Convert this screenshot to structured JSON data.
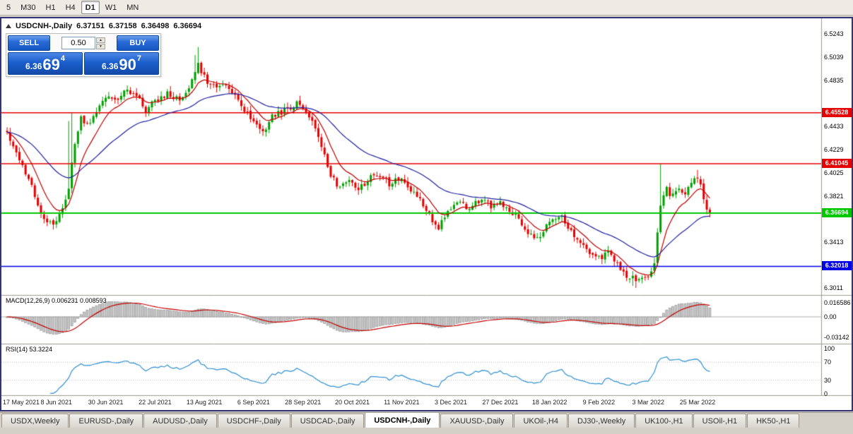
{
  "toolbar": {
    "periods": [
      {
        "label": "5",
        "active": false
      },
      {
        "label": "M30",
        "active": false
      },
      {
        "label": "H1",
        "active": false
      },
      {
        "label": "H4",
        "active": false
      },
      {
        "label": "D1",
        "active": true
      },
      {
        "label": "W1",
        "active": false
      },
      {
        "label": "MN",
        "active": false
      }
    ]
  },
  "quote_bar": {
    "symbol": "USDCNH-,Daily",
    "open": "6.37151",
    "high": "6.37158",
    "low": "6.36498",
    "close": "6.36694"
  },
  "trade_panel": {
    "sell_label": "SELL",
    "buy_label": "BUY",
    "volume": "0.50",
    "sell_price": {
      "base": "6.36",
      "big": "69",
      "sup": "4"
    },
    "buy_price": {
      "base": "6.36",
      "big": "90",
      "sup": "7"
    }
  },
  "indicators": {
    "macd_label": "MACD(12,26,9) 0.006231 0.008593",
    "rsi_label": "RSI(14) 53.3224"
  },
  "icons": {
    "up_arrow": "▲",
    "down_arrow": "▼"
  },
  "chart_data": {
    "type": "candlestick",
    "symbol": "USDCNH-",
    "timeframe": "Daily",
    "bars_total": 229,
    "price_range": {
      "top": 6.537,
      "bottom": 6.295
    },
    "y_ticks": [
      "6.5243",
      "6.5039",
      "6.4835",
      "6.4433",
      "6.4229",
      "6.4025",
      "6.3821",
      "6.3413",
      "6.3011"
    ],
    "hlines": [
      {
        "value": 6.45528,
        "label": "6.45528",
        "color": "#e60000",
        "kind": "resistance"
      },
      {
        "value": 6.41045,
        "label": "6.41045",
        "color": "#e60000",
        "kind": "resistance"
      },
      {
        "value": 6.36694,
        "label": "6.36694",
        "color": "#00c800",
        "kind": "bid"
      },
      {
        "value": 6.32018,
        "label": "6.32018",
        "color": "#0000e6",
        "kind": "support"
      }
    ],
    "x_labels": [
      {
        "bar": 0,
        "label": "17 May 2021"
      },
      {
        "bar": 16,
        "label": "8 Jun 2021"
      },
      {
        "bar": 32,
        "label": "30 Jun 2021"
      },
      {
        "bar": 48,
        "label": "22 Jul 2021"
      },
      {
        "bar": 64,
        "label": "13 Aug 2021"
      },
      {
        "bar": 80,
        "label": "6 Sep 2021"
      },
      {
        "bar": 96,
        "label": "28 Sep 2021"
      },
      {
        "bar": 112,
        "label": "20 Oct 2021"
      },
      {
        "bar": 128,
        "label": "11 Nov 2021"
      },
      {
        "bar": 144,
        "label": "3 Dec 2021"
      },
      {
        "bar": 160,
        "label": "27 Dec 2021"
      },
      {
        "bar": 176,
        "label": "18 Jan 2022"
      },
      {
        "bar": 192,
        "label": "9 Feb 2022"
      },
      {
        "bar": 208,
        "label": "3 Mar 2022"
      },
      {
        "bar": 224,
        "label": "25 Mar 2022"
      }
    ],
    "close_keypoints": [
      [
        0,
        6.437
      ],
      [
        3,
        6.42
      ],
      [
        6,
        6.404
      ],
      [
        9,
        6.383
      ],
      [
        12,
        6.36
      ],
      [
        15,
        6.357
      ],
      [
        18,
        6.369
      ],
      [
        20,
        6.391
      ],
      [
        22,
        6.427
      ],
      [
        24,
        6.45
      ],
      [
        27,
        6.446
      ],
      [
        30,
        6.461
      ],
      [
        33,
        6.472
      ],
      [
        36,
        6.464
      ],
      [
        39,
        6.477
      ],
      [
        42,
        6.469
      ],
      [
        45,
        6.457
      ],
      [
        48,
        6.465
      ],
      [
        52,
        6.473
      ],
      [
        56,
        6.466
      ],
      [
        59,
        6.479
      ],
      [
        62,
        6.497
      ],
      [
        64,
        6.487
      ],
      [
        67,
        6.477
      ],
      [
        70,
        6.482
      ],
      [
        74,
        6.469
      ],
      [
        78,
        6.455
      ],
      [
        80,
        6.447
      ],
      [
        83,
        6.438
      ],
      [
        86,
        6.451
      ],
      [
        90,
        6.457
      ],
      [
        94,
        6.464
      ],
      [
        96,
        6.459
      ],
      [
        99,
        6.447
      ],
      [
        102,
        6.424
      ],
      [
        105,
        6.4
      ],
      [
        108,
        6.388
      ],
      [
        111,
        6.395
      ],
      [
        114,
        6.386
      ],
      [
        117,
        6.397
      ],
      [
        120,
        6.402
      ],
      [
        124,
        6.393
      ],
      [
        128,
        6.398
      ],
      [
        131,
        6.386
      ],
      [
        134,
        6.377
      ],
      [
        137,
        6.366
      ],
      [
        140,
        6.353
      ],
      [
        143,
        6.369
      ],
      [
        146,
        6.377
      ],
      [
        150,
        6.372
      ],
      [
        154,
        6.379
      ],
      [
        158,
        6.372
      ],
      [
        160,
        6.377
      ],
      [
        164,
        6.368
      ],
      [
        168,
        6.353
      ],
      [
        172,
        6.346
      ],
      [
        176,
        6.357
      ],
      [
        180,
        6.364
      ],
      [
        183,
        6.352
      ],
      [
        186,
        6.34
      ],
      [
        189,
        6.331
      ],
      [
        192,
        6.327
      ],
      [
        195,
        6.334
      ],
      [
        198,
        6.322
      ],
      [
        201,
        6.313
      ],
      [
        204,
        6.308
      ],
      [
        206,
        6.312
      ],
      [
        208,
        6.31
      ],
      [
        210,
        6.321
      ],
      [
        212,
        6.376
      ],
      [
        214,
        6.388
      ],
      [
        216,
        6.382
      ],
      [
        218,
        6.39
      ],
      [
        220,
        6.385
      ],
      [
        222,
        6.393
      ],
      [
        224,
        6.399
      ],
      [
        226,
        6.381
      ],
      [
        227,
        6.372
      ],
      [
        228,
        6.36694
      ]
    ],
    "close_overrides": {
      "228": 6.36694
    },
    "wick_overrides_high": {
      "20": 6.448,
      "21": 6.455,
      "61": 6.506,
      "62": 6.513,
      "212": 6.4104,
      "224": 6.405
    },
    "wick_overrides_low": {
      "13": 6.3555,
      "203": 6.303,
      "204": 6.3012
    },
    "noise_seed": 20220401,
    "noise_amp": 0.003,
    "up_color": "#00a000",
    "down_color": "#e60000",
    "ma_fast": {
      "period": 9,
      "color": "#c00000"
    },
    "ma_slow": {
      "period": 34,
      "color": "#2020a0"
    },
    "macd": {
      "fast": 12,
      "slow": 26,
      "signal": 9,
      "current_macd": 0.006231,
      "current_signal": 0.008593,
      "hist_color": "#c6c6c6",
      "hist_border": "#8e8e8e",
      "signal_color": "#c00000",
      "y_ticks": [
        "0.016586",
        "0.00",
        "-0.03142"
      ]
    },
    "rsi": {
      "period": 14,
      "current": 53.3224,
      "color": "#2f8fd0",
      "levels": [
        70,
        30
      ],
      "y_ticks": [
        "100",
        "70",
        "30",
        "0"
      ]
    }
  },
  "tabs": [
    {
      "label": "USDX,Weekly",
      "active": false
    },
    {
      "label": "EURUSD-,Daily",
      "active": false
    },
    {
      "label": "AUDUSD-,Daily",
      "active": false
    },
    {
      "label": "USDCHF-,Daily",
      "active": false
    },
    {
      "label": "USDCAD-,Daily",
      "active": false
    },
    {
      "label": "USDCNH-,Daily",
      "active": true
    },
    {
      "label": "XAUUSD-,Daily",
      "active": false
    },
    {
      "label": "UKOil-,H4",
      "active": false
    },
    {
      "label": "DJ30-,Weekly",
      "active": false
    },
    {
      "label": "UK100-,H1",
      "active": false
    },
    {
      "label": "USOil-,H1",
      "active": false
    },
    {
      "label": "HK50-,H1",
      "active": false
    }
  ]
}
